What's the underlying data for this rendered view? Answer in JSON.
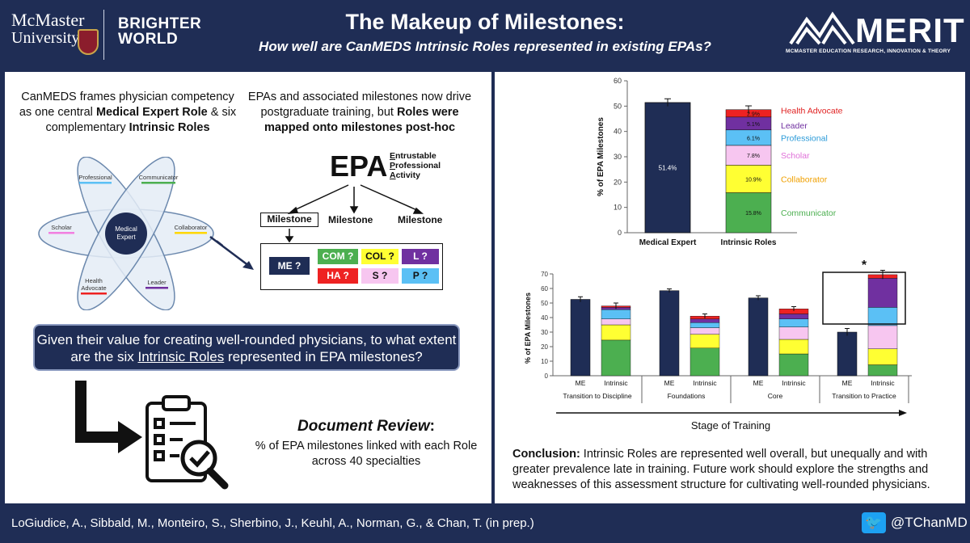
{
  "header": {
    "university_line1": "McMaster",
    "university_line2": "University",
    "tagline_line1": "BRIGHTER",
    "tagline_line2": "WORLD",
    "title": "The Makeup of Milestones:",
    "subtitle": "How well are CanMEDS Intrinsic Roles represented in existing EPAs?",
    "merit_name": "MERIT",
    "merit_full": "MCMASTER EDUCATION RESEARCH, INNOVATION & THEORY"
  },
  "left": {
    "intro1_a": "CanMEDS frames physician competency as one central ",
    "intro1_b": "Medical Expert Role",
    "intro1_c": " & six complementary ",
    "intro1_d": "Intrinsic Roles",
    "intro2_a": "EPAs and associated milestones now drive postgraduate training, but ",
    "intro2_b": "Roles were mapped onto milestones post-hoc",
    "flower": {
      "center_line1": "Medical",
      "center_line2": "Expert",
      "professional": "Professional",
      "communicator": "Communicator",
      "scholar": "Scholar",
      "collaborator": "Collaborator",
      "health_line1": "Health",
      "health_line2": "Advocate",
      "leader": "Leader"
    },
    "epa": {
      "acronym": "EPA",
      "e_first": "E",
      "e_rest": "ntrustable",
      "p_first": "P",
      "p_rest": "rofessional",
      "a_first": "A",
      "a_rest": "ctivity",
      "milestone": "Milestone",
      "tags": {
        "me": "ME ?",
        "com": "COM ?",
        "col": "COL ?",
        "l": "L ?",
        "ha": "HA ?",
        "s": "S ?",
        "p": "P ?"
      }
    },
    "question_a": "Given their value for creating well-rounded physicians, to what extent are the six ",
    "question_b": "Intrinsic Roles",
    "question_c": " represented in EPA milestones?",
    "doc_title": "Document Review",
    "doc_colon": ":",
    "doc_body": "% of EPA milestones linked with each Role across 40 specialties"
  },
  "chart_data": [
    {
      "type": "bar",
      "stacked": true,
      "categories": [
        "Medical Expert",
        "Intrinsic Roles"
      ],
      "ylabel": "% of EPA Milestones",
      "ylim": [
        0,
        60
      ],
      "yticks": [
        0,
        10,
        20,
        30,
        40,
        50,
        60
      ],
      "medical_expert": {
        "value": 51.4,
        "label": "51.4%",
        "error": 1.5,
        "color": "#1f2d55"
      },
      "series": [
        {
          "name": "Communicator",
          "value": 15.8,
          "label": "15.8%",
          "color": "#4caf50",
          "text_color": "#4caf50"
        },
        {
          "name": "Collaborator",
          "value": 10.9,
          "label": "10.9%",
          "color": "#ffff33",
          "text_color": "#f0a000"
        },
        {
          "name": "Scholar",
          "value": 7.8,
          "label": "7.8%",
          "color": "#f7c6f0",
          "text_color": "#e070d8"
        },
        {
          "name": "Professional",
          "value": 6.1,
          "label": "6.1%",
          "color": "#5bc0f5",
          "text_color": "#2a9ad8"
        },
        {
          "name": "Leader",
          "value": 5.1,
          "label": "5.1%",
          "color": "#7030a0",
          "text_color": "#7030a0"
        },
        {
          "name": "Health Advocate",
          "value": 2.9,
          "label": "2.9%",
          "color": "#ee2222",
          "text_color": "#e02020"
        }
      ],
      "intrinsic_error": 1.5
    },
    {
      "type": "bar",
      "stacked": true,
      "ylabel": "% of EPA Milestones",
      "xlabel": "Stage of Training",
      "ylim": [
        0,
        70
      ],
      "yticks": [
        0,
        10,
        20,
        30,
        40,
        50,
        60,
        70
      ],
      "bar_labels": [
        "ME",
        "Intrinsic"
      ],
      "annotation": "*",
      "stages": [
        {
          "name": "Transition to Discipline",
          "me": 52.5,
          "me_err": 1.8,
          "intrinsic": [
            24.5,
            10.5,
            4.0,
            6.5,
            1.5,
            1.0
          ],
          "intrinsic_err": 2.0
        },
        {
          "name": "Foundations",
          "me": 58.5,
          "me_err": 1.2,
          "intrinsic": [
            19.0,
            9.5,
            4.5,
            3.5,
            2.5,
            2.0
          ],
          "intrinsic_err": 1.5
        },
        {
          "name": "Core",
          "me": 53.5,
          "me_err": 1.5,
          "intrinsic": [
            15.0,
            10.0,
            8.5,
            5.5,
            3.5,
            3.5
          ],
          "intrinsic_err": 1.5
        },
        {
          "name": "Transition to Practice",
          "me": 30.0,
          "me_err": 2.5,
          "intrinsic": [
            7.5,
            11.0,
            16.0,
            12.5,
            20.0,
            2.5
          ],
          "intrinsic_err": 3.0
        }
      ]
    }
  ],
  "conclusion_label": "Conclusion:",
  "conclusion_text": " Intrinsic Roles are represented well overall, but unequally and with greater prevalence late in training. Future work should explore the strengths and weaknesses of this assessment structure for cultivating well-rounded physicians.",
  "footer": {
    "citation": "LoGiudice, A., Sibbald, M., Monteiro, S., Sherbino, J., Keuhl, A., Norman, G., & Chan, T. (in prep.)",
    "twitter_icon": "twitter-bird-icon",
    "handle": "@TChanMD"
  }
}
